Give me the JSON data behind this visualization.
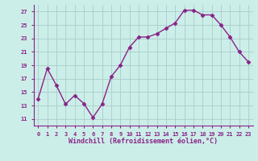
{
  "x": [
    0,
    1,
    2,
    3,
    4,
    5,
    6,
    7,
    8,
    9,
    10,
    11,
    12,
    13,
    14,
    15,
    16,
    17,
    18,
    19,
    20,
    21,
    22,
    23
  ],
  "y": [
    14.0,
    18.5,
    16.0,
    13.2,
    14.5,
    13.3,
    11.2,
    13.2,
    17.3,
    19.0,
    21.7,
    23.2,
    23.2,
    23.7,
    24.5,
    25.3,
    27.2,
    27.2,
    26.5,
    26.5,
    25.0,
    23.2,
    21.0,
    19.5
  ],
  "line_color": "#882288",
  "marker": "D",
  "markersize": 2.5,
  "linewidth": 1.0,
  "bg_color": "#cceee8",
  "grid_color": "#aacccc",
  "xlabel": "Windchill (Refroidissement éolien,°C)",
  "yticks": [
    11,
    13,
    15,
    17,
    19,
    21,
    23,
    25,
    27
  ],
  "xticks": [
    0,
    1,
    2,
    3,
    4,
    5,
    6,
    7,
    8,
    9,
    10,
    11,
    12,
    13,
    14,
    15,
    16,
    17,
    18,
    19,
    20,
    21,
    22,
    23
  ],
  "xlim": [
    -0.5,
    23.5
  ],
  "ylim": [
    10.0,
    28.0
  ],
  "tick_fontsize": 5.0,
  "xlabel_fontsize": 6.0,
  "label_color": "#882288",
  "axis_color": "#882288"
}
